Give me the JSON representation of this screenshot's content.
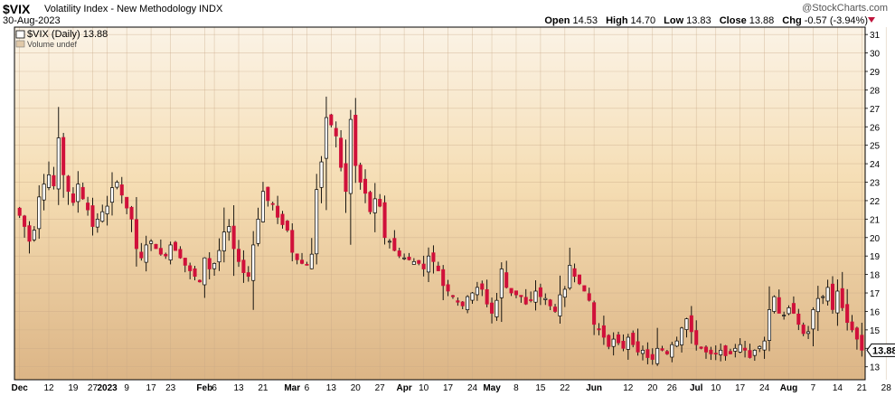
{
  "header": {
    "symbol": "$VIX",
    "description": "Volatility Index - New Methodology",
    "exchange": "INDX",
    "watermark": "@StockCharts.com",
    "date": "30-Aug-2023",
    "open_label": "Open",
    "open": "14.53",
    "high_label": "High",
    "high": "14.70",
    "low_label": "Low",
    "low": "13.83",
    "close_label": "Close",
    "close": "13.88",
    "chg_label": "Chg",
    "chg": "-0.57 (-3.94%)",
    "change_direction": "down"
  },
  "legend": {
    "series_label": "$VIX (Daily) 13.88",
    "volume_label": "Volume undef"
  },
  "colors": {
    "up": "#ffffff",
    "down": "#d0103a",
    "wick": "#000000",
    "bg_top": "#fbf3e6",
    "bg_mid": "#f5ddb3",
    "bg_bottom": "#dcb586",
    "grid": "#c8a887"
  },
  "chart_data": {
    "type": "candlestick",
    "title": "$VIX (Daily)",
    "ylim": [
      12.3,
      31.4
    ],
    "yticks": [
      13,
      14,
      15,
      16,
      17,
      18,
      19,
      20,
      21,
      22,
      23,
      24,
      25,
      26,
      27,
      28,
      29,
      30,
      31
    ],
    "last_value_label": "13.88",
    "x_labels": [
      {
        "label": "Dec",
        "index": 0,
        "bold": true
      },
      {
        "label": "12",
        "index": 6
      },
      {
        "label": "19",
        "index": 11
      },
      {
        "label": "27",
        "index": 15
      },
      {
        "label": "2023",
        "index": 18,
        "bold": true
      },
      {
        "label": "9",
        "index": 22
      },
      {
        "label": "17",
        "index": 27
      },
      {
        "label": "23",
        "index": 31
      },
      {
        "label": "Feb",
        "index": 38,
        "bold": true
      },
      {
        "label": "6",
        "index": 40
      },
      {
        "label": "13",
        "index": 45
      },
      {
        "label": "21",
        "index": 50
      },
      {
        "label": "Mar",
        "index": 56,
        "bold": true
      },
      {
        "label": "6",
        "index": 59
      },
      {
        "label": "13",
        "index": 64
      },
      {
        "label": "20",
        "index": 69
      },
      {
        "label": "27",
        "index": 74
      },
      {
        "label": "Apr",
        "index": 79,
        "bold": true
      },
      {
        "label": "10",
        "index": 83
      },
      {
        "label": "17",
        "index": 88
      },
      {
        "label": "24",
        "index": 93
      },
      {
        "label": "May",
        "index": 97,
        "bold": true
      },
      {
        "label": "8",
        "index": 102
      },
      {
        "label": "15",
        "index": 107
      },
      {
        "label": "22",
        "index": 112
      },
      {
        "label": "Jun",
        "index": 118,
        "bold": true
      },
      {
        "label": "12",
        "index": 125
      },
      {
        "label": "20",
        "index": 130
      },
      {
        "label": "26",
        "index": 134
      },
      {
        "label": "Jul",
        "index": 139,
        "bold": true
      },
      {
        "label": "10",
        "index": 143
      },
      {
        "label": "17",
        "index": 148
      },
      {
        "label": "24",
        "index": 153
      },
      {
        "label": "Aug",
        "index": 158,
        "bold": true
      },
      {
        "label": "7",
        "index": 163
      },
      {
        "label": "14",
        "index": 168
      },
      {
        "label": "21",
        "index": 173
      },
      {
        "label": "28",
        "index": 178
      }
    ],
    "closes": [
      21.2,
      20.6,
      19.8,
      20.4,
      22.2,
      22.9,
      23.4,
      22.8,
      25.4,
      23.4,
      22.5,
      21.9,
      22.9,
      22.1,
      21.5,
      20.6,
      21.0,
      21.4,
      21.7,
      22.7,
      23.0,
      22.3,
      21.6,
      21.0,
      19.4,
      18.9,
      19.6,
      19.8,
      19.4,
      19.1,
      19.0,
      19.6,
      19.3,
      18.9,
      18.5,
      18.2,
      17.9,
      17.6,
      18.9,
      18.3,
      18.6,
      19.3,
      20.3,
      20.6,
      19.4,
      18.7,
      18.1,
      17.9,
      19.6,
      21.0,
      22.5,
      22.0,
      21.8,
      21.1,
      20.7,
      20.4,
      19.2,
      18.8,
      18.6,
      18.5,
      19.1,
      22.6,
      24.1,
      26.5,
      26.1,
      25.5,
      23.8,
      22.5,
      26.4,
      23.9,
      23.0,
      22.4,
      21.4,
      22.1,
      21.7,
      20.0,
      19.8,
      19.3,
      19.0,
      18.9,
      18.8,
      18.7,
      18.6,
      18.3,
      19.0,
      18.7,
      18.2,
      17.4,
      17.1,
      16.8,
      16.5,
      16.3,
      16.8,
      17.0,
      17.3,
      17.2,
      16.4,
      15.9,
      16.6,
      18.3,
      17.3,
      17.0,
      16.9,
      16.8,
      16.4,
      16.6,
      17.1,
      16.8,
      16.7,
      16.3,
      16.0,
      16.9,
      17.2,
      18.5,
      17.9,
      17.5,
      17.1,
      16.6,
      15.3,
      15.0,
      14.6,
      14.1,
      14.5,
      14.3,
      14.0,
      14.6,
      14.2,
      13.8,
      13.9,
      13.5,
      13.4,
      14.0,
      13.9,
      13.7,
      14.2,
      14.4,
      15.1,
      15.6,
      14.9,
      14.2,
      14.0,
      13.8,
      13.7,
      13.7,
      13.9,
      13.6,
      13.7,
      14.0,
      14.2,
      13.9,
      13.5,
      13.9,
      14.1,
      14.4,
      16.1,
      16.8,
      15.9,
      15.8,
      16.2,
      15.9,
      15.3,
      14.8,
      14.9,
      16.1,
      16.7,
      16.8,
      17.3,
      16.1,
      17.1,
      16.2,
      15.4,
      15.0,
      14.5,
      13.9
    ]
  }
}
